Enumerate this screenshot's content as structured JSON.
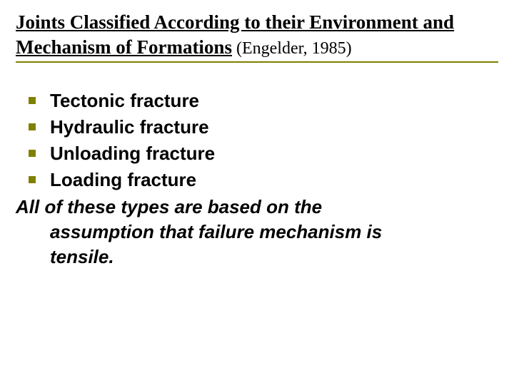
{
  "title": {
    "main": "Joints Classified According to their Environment and Mechanism of Formations",
    "citation": " (Engelder, 1985)"
  },
  "bullets": [
    "Tectonic fracture",
    "Hydraulic fracture",
    "Unloading fracture",
    "Loading fracture"
  ],
  "summary": {
    "line1": "All of these types are based on the",
    "line2": "assumption that failure mechanism is",
    "line3": "tensile."
  },
  "colors": {
    "accent": "#808000",
    "text": "#000000",
    "background": "#ffffff"
  }
}
